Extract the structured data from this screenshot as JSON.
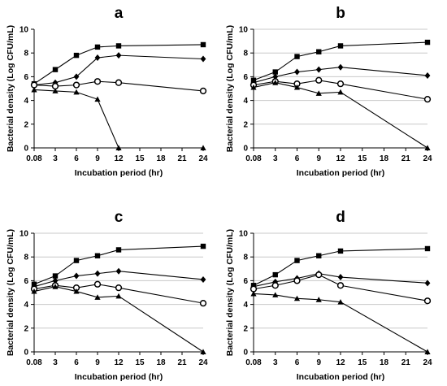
{
  "chart_data": [
    {
      "type": "line",
      "title": "a",
      "xlabel": "Incubation period (hr)",
      "ylabel": "Bacterial density (Log CFU/mL)",
      "x_ticks": [
        "0.08",
        "3",
        "6",
        "9",
        "12",
        "15",
        "18",
        "21",
        "24"
      ],
      "y_ticks": [
        "0",
        "2",
        "4",
        "6",
        "8",
        "10"
      ],
      "ylim": [
        0,
        10
      ],
      "grid": false,
      "series": [
        {
          "marker": "square",
          "x": [
            0.08,
            3,
            6,
            9,
            12,
            24
          ],
          "y": [
            5.4,
            6.6,
            7.8,
            8.5,
            8.6,
            8.7
          ]
        },
        {
          "marker": "diamond",
          "x": [
            0.08,
            3,
            6,
            9,
            12,
            24
          ],
          "y": [
            5.3,
            5.5,
            6.0,
            7.6,
            7.8,
            7.5
          ]
        },
        {
          "marker": "circle",
          "x": [
            0.08,
            3,
            6,
            9,
            12,
            24
          ],
          "y": [
            5.3,
            5.2,
            5.3,
            5.6,
            5.5,
            4.8
          ]
        },
        {
          "marker": "triangle",
          "x": [
            0.08,
            3,
            6,
            9,
            12,
            24
          ],
          "y": [
            4.9,
            4.8,
            4.7,
            4.1,
            0,
            0
          ]
        }
      ]
    },
    {
      "type": "line",
      "title": "b",
      "xlabel": "Incubation period (hr)",
      "ylabel": "Bacterial density (Log CFU/mL)",
      "x_ticks": [
        "0.08",
        "3",
        "6",
        "9",
        "12",
        "15",
        "18",
        "21",
        "24"
      ],
      "y_ticks": [
        "0",
        "2",
        "4",
        "6",
        "8",
        "10"
      ],
      "ylim": [
        0,
        10
      ],
      "grid": true,
      "series": [
        {
          "marker": "square",
          "x": [
            0.08,
            3,
            6,
            9,
            12,
            24
          ],
          "y": [
            5.7,
            6.4,
            7.7,
            8.1,
            8.6,
            8.9
          ]
        },
        {
          "marker": "diamond",
          "x": [
            0.08,
            3,
            6,
            9,
            12,
            24
          ],
          "y": [
            5.5,
            6.0,
            6.4,
            6.6,
            6.8,
            6.1
          ]
        },
        {
          "marker": "circle",
          "x": [
            0.08,
            3,
            6,
            9,
            12,
            24
          ],
          "y": [
            5.3,
            5.6,
            5.4,
            5.7,
            5.4,
            4.1
          ]
        },
        {
          "marker": "triangle",
          "x": [
            0.08,
            3,
            6,
            9,
            12,
            24
          ],
          "y": [
            5.1,
            5.5,
            5.1,
            4.6,
            4.7,
            0
          ]
        }
      ]
    },
    {
      "type": "line",
      "title": "c",
      "xlabel": "Incubation period (hr)",
      "ylabel": "Bacterial density (Log CFU/mL)",
      "x_ticks": [
        "0.08",
        "3",
        "6",
        "9",
        "12",
        "15",
        "18",
        "21",
        "24"
      ],
      "y_ticks": [
        "0",
        "2",
        "4",
        "6",
        "8",
        "10"
      ],
      "ylim": [
        0,
        10
      ],
      "grid": true,
      "series": [
        {
          "marker": "square",
          "x": [
            0.08,
            3,
            6,
            9,
            12,
            24
          ],
          "y": [
            5.7,
            6.4,
            7.7,
            8.1,
            8.6,
            8.9
          ]
        },
        {
          "marker": "diamond",
          "x": [
            0.08,
            3,
            6,
            9,
            12,
            24
          ],
          "y": [
            5.5,
            6.0,
            6.4,
            6.6,
            6.8,
            6.1
          ]
        },
        {
          "marker": "circle",
          "x": [
            0.08,
            3,
            6,
            9,
            12,
            24
          ],
          "y": [
            5.3,
            5.6,
            5.4,
            5.7,
            5.4,
            4.1
          ]
        },
        {
          "marker": "triangle",
          "x": [
            0.08,
            3,
            6,
            9,
            12,
            24
          ],
          "y": [
            5.1,
            5.5,
            5.1,
            4.6,
            4.7,
            0
          ]
        }
      ]
    },
    {
      "type": "line",
      "title": "d",
      "xlabel": "Incubation period (hr)",
      "ylabel": "Bacterial density (Log CFU/mL)",
      "x_ticks": [
        "0.08",
        "3",
        "6",
        "9",
        "12",
        "15",
        "18",
        "21",
        "24"
      ],
      "y_ticks": [
        "0",
        "2",
        "4",
        "6",
        "8",
        "10"
      ],
      "ylim": [
        0,
        10
      ],
      "grid": true,
      "series": [
        {
          "marker": "square",
          "x": [
            0.08,
            3,
            6,
            9,
            12,
            24
          ],
          "y": [
            5.6,
            6.5,
            7.7,
            8.1,
            8.5,
            8.7
          ]
        },
        {
          "marker": "diamond",
          "x": [
            0.08,
            3,
            6,
            9,
            12,
            24
          ],
          "y": [
            5.5,
            5.9,
            6.2,
            6.6,
            6.3,
            5.8
          ]
        },
        {
          "marker": "circle",
          "x": [
            0.08,
            3,
            6,
            9,
            12,
            24
          ],
          "y": [
            5.3,
            5.6,
            6.0,
            6.5,
            5.6,
            4.3
          ]
        },
        {
          "marker": "triangle",
          "x": [
            0.08,
            3,
            6,
            9,
            12,
            24
          ],
          "y": [
            4.9,
            4.8,
            4.5,
            4.4,
            4.2,
            0
          ]
        }
      ]
    }
  ]
}
